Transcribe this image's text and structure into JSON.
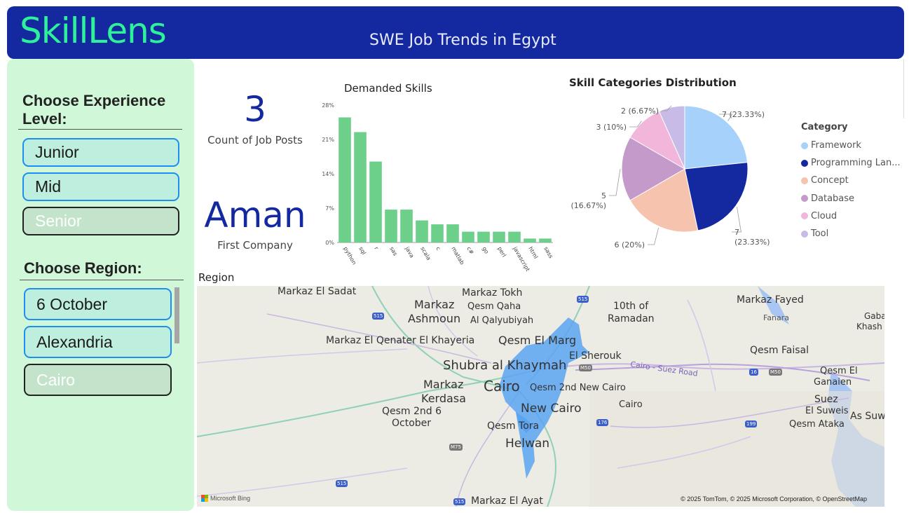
{
  "app": {
    "brand": "SkillLens",
    "title": "SWE Job Trends in Egypt"
  },
  "filters": {
    "experience": {
      "title": "Choose Experience Level:",
      "options": [
        {
          "label": "Junior",
          "selected": true
        },
        {
          "label": "Mid",
          "selected": true
        },
        {
          "label": "Senior",
          "selected": false
        }
      ]
    },
    "region": {
      "title": "Choose Region:",
      "options": [
        {
          "label": "6 October",
          "selected": true
        },
        {
          "label": "Alexandria",
          "selected": true
        },
        {
          "label": "Cairo",
          "selected": false
        }
      ]
    }
  },
  "kpis": {
    "count": {
      "value": "3",
      "label": "Count of Job Posts"
    },
    "company": {
      "value": "Aman",
      "label": "First Company"
    }
  },
  "chart_data": [
    {
      "type": "bar",
      "title": "Demanded Skills",
      "categories": [
        "python",
        "sql",
        "r",
        "sas",
        "java",
        "scala",
        "c",
        "matlab",
        "c#",
        "go",
        "perl",
        "javascript",
        "html",
        "sass"
      ],
      "values": [
        25.5,
        22.5,
        16.5,
        6.7,
        6.7,
        4.5,
        3.7,
        3.7,
        2.2,
        2.2,
        2.2,
        2.2,
        0.8,
        0.8
      ],
      "yticks": [
        "0%",
        "7%",
        "14%",
        "21%",
        "28%"
      ],
      "ylim": [
        0,
        28
      ],
      "color": "#6ccf8a"
    },
    {
      "type": "pie",
      "title": "Skill Categories Distribution",
      "legend_title": "Category",
      "slices": [
        {
          "label": "Framework",
          "value": 7,
          "data_label": "7 (23.33%)",
          "color": "#a5d1fa"
        },
        {
          "label": "Programming Lan...",
          "value": 7,
          "data_label": "7 (23.33%)",
          "color": "#1428a0"
        },
        {
          "label": "Concept",
          "value": 6,
          "data_label": "6 (20%)",
          "color": "#f5c3ae"
        },
        {
          "label": "Database",
          "value": 5,
          "data_label": "5 (16.67%)",
          "color": "#c39ac9"
        },
        {
          "label": "Cloud",
          "value": 3,
          "data_label": "3 (10%)",
          "color": "#f2b6da"
        },
        {
          "label": "Tool",
          "value": 2,
          "data_label": "2 (6.67%)",
          "color": "#c8bbe8"
        }
      ]
    }
  ],
  "map": {
    "title": "Region",
    "places": [
      {
        "name": "Markaz El Sadat",
        "size": 14
      },
      {
        "name": "Markaz Tokh",
        "size": 14
      },
      {
        "name": "Markaz",
        "size": 16
      },
      {
        "name": "Ashmoun",
        "size": 16
      },
      {
        "name": "Qesm Qaha",
        "size": 13
      },
      {
        "name": "Al Qalyubiyah",
        "size": 13
      },
      {
        "name": "10th of",
        "size": 14
      },
      {
        "name": "Ramadan",
        "size": 14
      },
      {
        "name": "Markaz Fayed",
        "size": 14
      },
      {
        "name": "Fanara",
        "size": 11
      },
      {
        "name": "Gaba",
        "size": 12
      },
      {
        "name": "Khash",
        "size": 12
      },
      {
        "name": "Markaz El Qenater El Khayeria",
        "size": 14
      },
      {
        "name": "Qesm El Marg",
        "size": 16
      },
      {
        "name": "El Sherouk",
        "size": 14
      },
      {
        "name": "Qesm Faisal",
        "size": 14
      },
      {
        "name": "Shubra al Khaymah",
        "size": 18
      },
      {
        "name": "Cairo - Suez Road",
        "size": 11
      },
      {
        "name": "Qesm El",
        "size": 13
      },
      {
        "name": "Ganaien",
        "size": 13
      },
      {
        "name": "Markaz",
        "size": 16
      },
      {
        "name": "Kerdasa",
        "size": 16
      },
      {
        "name": "Cairo",
        "size": 20
      },
      {
        "name": "Qesm 2nd New Cairo",
        "size": 13
      },
      {
        "name": "New Cairo",
        "size": 17
      },
      {
        "name": "Cairo",
        "size": 13
      },
      {
        "name": "Suez",
        "size": 14
      },
      {
        "name": "El Suweis",
        "size": 13
      },
      {
        "name": "As Suwa",
        "size": 14
      },
      {
        "name": "Qesm 2nd 6",
        "size": 14
      },
      {
        "name": "October",
        "size": 14
      },
      {
        "name": "Qesm Ataka",
        "size": 13
      },
      {
        "name": "Qesm Tora",
        "size": 14
      },
      {
        "name": "Helwan",
        "size": 17
      },
      {
        "name": "Markaz El Ayat",
        "size": 14
      }
    ],
    "road_shields": [
      "515",
      "515",
      "M50",
      "16",
      "M50",
      "176",
      "199",
      "M75",
      "515",
      "515"
    ],
    "credit": "© 2025 TomTom, © 2025 Microsoft Corporation, © OpenStreetMap",
    "bing": "Microsoft Bing"
  }
}
